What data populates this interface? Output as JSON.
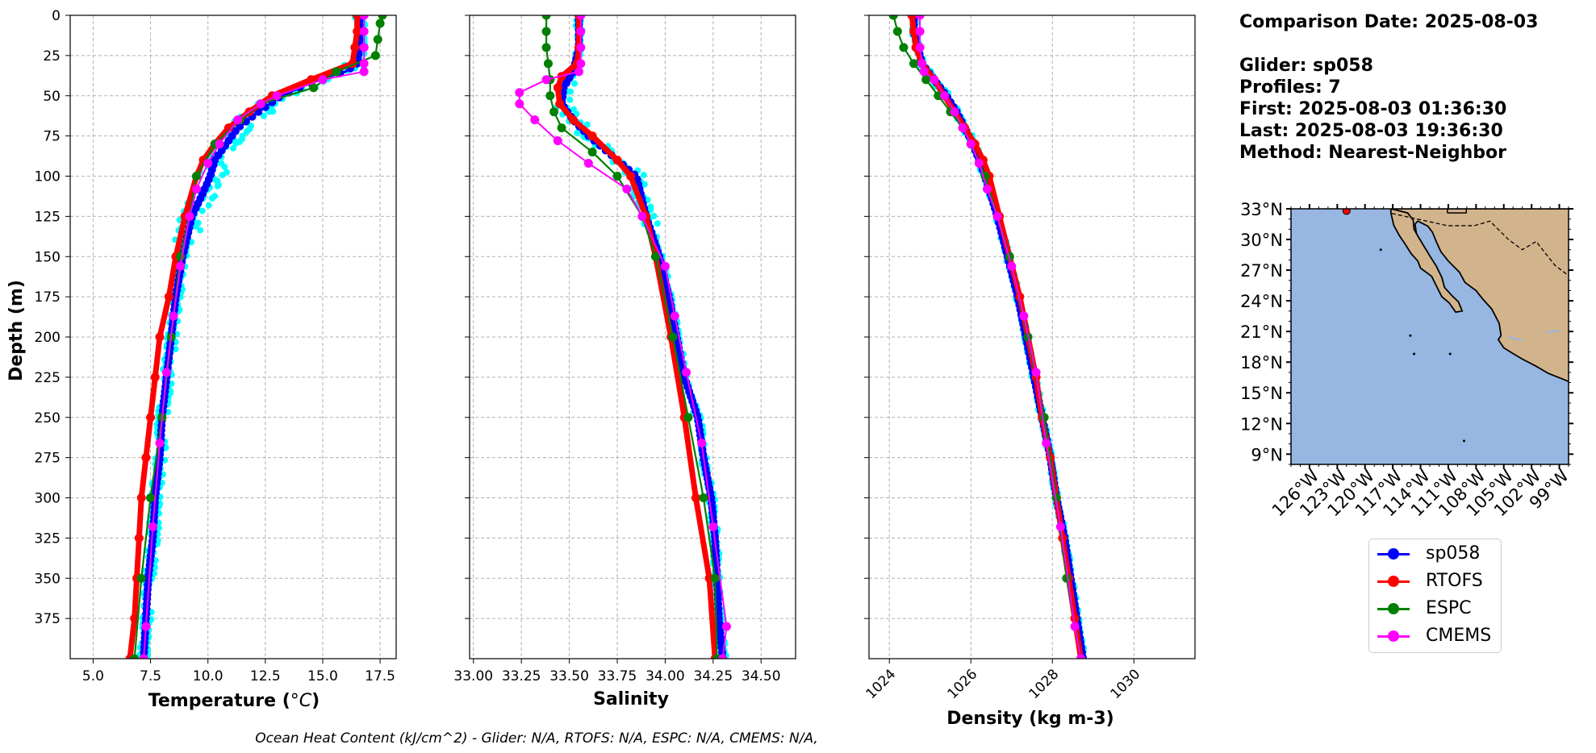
{
  "info": {
    "comparison_date": "Comparison Date: 2025-08-03",
    "glider": "Glider: sp058",
    "profiles": "Profiles: 7",
    "first": "First: 2025-08-03 01:36:30",
    "last": "Last: 2025-08-03 19:36:30",
    "method": "Method: Nearest-Neighbor"
  },
  "footer": "Ocean Heat Content (kJ/cm^2) - Glider: N/A,  RTOFS: N/A,  ESPC: N/A,  CMEMS: N/A,",
  "legend": [
    {
      "name": "sp058",
      "color": "#0000ff"
    },
    {
      "name": "RTOFS",
      "color": "#ff0000"
    },
    {
      "name": "ESPC",
      "color": "#008000"
    },
    {
      "name": "CMEMS",
      "color": "#ff00ff"
    }
  ],
  "colors": {
    "glider_raw": "#00ffff",
    "land": "#d2b48c",
    "ocean": "#97b6e1",
    "grid": "#b0b0b0"
  },
  "chart_data": [
    {
      "type": "line",
      "xlabel": "Temperature (°C)",
      "ylabel": "Depth (m)",
      "xlim": [
        4.0,
        18.2
      ],
      "ylim": [
        400,
        0
      ],
      "xticks": [
        5.0,
        7.5,
        10.0,
        12.5,
        15.0,
        17.5
      ],
      "xtick_labels": [
        "5.0",
        "7.5",
        "10.0",
        "12.5",
        "15.0",
        "17.5"
      ],
      "yticks": [
        0,
        25,
        50,
        75,
        100,
        125,
        150,
        175,
        200,
        225,
        250,
        275,
        300,
        325,
        350,
        375
      ],
      "grid": true,
      "series": [
        {
          "name": "sp058",
          "depth": [
            0,
            10,
            20,
            30,
            35,
            40,
            50,
            60,
            70,
            80,
            90,
            100,
            110,
            125,
            150,
            175,
            200,
            225,
            250,
            275,
            300,
            325,
            350,
            375,
            400
          ],
          "values": [
            16.6,
            16.6,
            16.6,
            16.5,
            16.0,
            14.8,
            13.2,
            12.2,
            11.3,
            10.8,
            10.3,
            10.1,
            9.8,
            9.3,
            8.9,
            8.6,
            8.4,
            8.2,
            8.0,
            7.9,
            7.7,
            7.6,
            7.4,
            7.3,
            7.2
          ]
        },
        {
          "name": "RTOFS",
          "depth": [
            0,
            10,
            20,
            30,
            40,
            50,
            60,
            70,
            80,
            90,
            100,
            125,
            150,
            175,
            200,
            225,
            250,
            275,
            300,
            325,
            350,
            375,
            400
          ],
          "values": [
            16.5,
            16.5,
            16.4,
            16.3,
            14.5,
            12.8,
            11.8,
            10.9,
            10.3,
            9.8,
            9.5,
            9.0,
            8.6,
            8.3,
            7.9,
            7.7,
            7.5,
            7.3,
            7.1,
            7.0,
            6.9,
            6.8,
            6.6
          ]
        },
        {
          "name": "ESPC",
          "depth": [
            0,
            5,
            15,
            25,
            35,
            45,
            55,
            65,
            80,
            100,
            125,
            150,
            200,
            250,
            300,
            350,
            400
          ],
          "values": [
            17.6,
            17.5,
            17.4,
            17.3,
            15.6,
            14.6,
            12.3,
            11.4,
            10.3,
            9.5,
            9.2,
            8.8,
            8.4,
            8.0,
            7.5,
            7.1,
            6.8
          ]
        },
        {
          "name": "CMEMS",
          "depth": [
            0,
            10,
            20,
            30,
            35,
            40,
            50,
            55,
            65,
            80,
            92,
            108,
            125,
            156,
            187,
            222,
            266,
            318,
            380,
            400
          ],
          "values": [
            16.8,
            16.8,
            16.8,
            16.8,
            16.8,
            15.0,
            13.0,
            12.3,
            11.3,
            10.5,
            10.0,
            9.5,
            9.2,
            8.8,
            8.5,
            8.2,
            7.9,
            7.6,
            7.3,
            7.2
          ]
        }
      ]
    },
    {
      "type": "line",
      "xlabel": "Salinity",
      "xlim": [
        32.98,
        34.68
      ],
      "ylim": [
        400,
        0
      ],
      "xticks": [
        33.0,
        33.25,
        33.5,
        33.75,
        34.0,
        34.25,
        34.5
      ],
      "xtick_labels": [
        "33.00",
        "33.25",
        "33.50",
        "33.75",
        "34.00",
        "34.25",
        "34.50"
      ],
      "grid": true,
      "series": [
        {
          "name": "sp058",
          "depth": [
            0,
            20,
            35,
            45,
            55,
            65,
            75,
            85,
            100,
            125,
            150,
            175,
            200,
            225,
            250,
            275,
            300,
            325,
            350,
            375,
            400
          ],
          "values": [
            33.55,
            33.55,
            33.52,
            33.47,
            33.46,
            33.52,
            33.6,
            33.7,
            33.85,
            33.9,
            33.97,
            34.02,
            34.06,
            34.1,
            34.17,
            34.2,
            34.24,
            34.26,
            34.27,
            34.28,
            34.3
          ]
        },
        {
          "name": "RTOFS",
          "depth": [
            0,
            20,
            30,
            38,
            45,
            55,
            65,
            75,
            90,
            100,
            125,
            150,
            200,
            250,
            300,
            350,
            400
          ],
          "values": [
            33.55,
            33.55,
            33.54,
            33.46,
            33.44,
            33.45,
            33.52,
            33.62,
            33.75,
            33.82,
            33.9,
            33.95,
            34.03,
            34.1,
            34.16,
            34.23,
            34.26
          ]
        },
        {
          "name": "ESPC",
          "depth": [
            0,
            10,
            20,
            30,
            40,
            50,
            60,
            70,
            85,
            100,
            125,
            150,
            200,
            250,
            300,
            350,
            400
          ],
          "values": [
            33.38,
            33.38,
            33.38,
            33.39,
            33.4,
            33.4,
            33.42,
            33.46,
            33.62,
            33.75,
            33.88,
            33.95,
            34.04,
            34.12,
            34.2,
            34.26,
            34.27
          ]
        },
        {
          "name": "CMEMS",
          "depth": [
            0,
            10,
            20,
            30,
            35,
            40,
            48,
            55,
            65,
            78,
            92,
            108,
            125,
            156,
            187,
            222,
            266,
            318,
            380,
            400
          ],
          "values": [
            33.56,
            33.56,
            33.56,
            33.56,
            33.55,
            33.38,
            33.24,
            33.24,
            33.32,
            33.44,
            33.6,
            33.8,
            33.88,
            34.0,
            34.05,
            34.11,
            34.19,
            34.25,
            34.32,
            34.3
          ]
        }
      ]
    },
    {
      "type": "line",
      "xlabel": "Density (kg m-3)",
      "xlim": [
        1023.5,
        1031.5
      ],
      "ylim": [
        400,
        0
      ],
      "xticks": [
        1024,
        1026,
        1028,
        1030
      ],
      "xtick_labels": [
        "1024",
        "1026",
        "1028",
        "1030"
      ],
      "grid": true,
      "series": [
        {
          "name": "sp058",
          "depth": [
            0,
            10,
            20,
            30,
            40,
            50,
            60,
            70,
            80,
            90,
            100,
            125,
            150,
            175,
            200,
            225,
            250,
            275,
            300,
            325,
            350,
            375,
            400
          ],
          "values": [
            1024.6,
            1024.6,
            1024.7,
            1024.8,
            1025.1,
            1025.4,
            1025.65,
            1025.85,
            1026.05,
            1026.2,
            1026.35,
            1026.65,
            1026.9,
            1027.15,
            1027.35,
            1027.55,
            1027.75,
            1027.95,
            1028.1,
            1028.3,
            1028.45,
            1028.6,
            1028.75
          ]
        },
        {
          "name": "RTOFS",
          "depth": [
            0,
            10,
            20,
            30,
            40,
            50,
            60,
            70,
            80,
            90,
            100,
            125,
            150,
            175,
            200,
            225,
            250,
            275,
            300,
            325,
            350,
            375,
            400
          ],
          "values": [
            1024.55,
            1024.6,
            1024.65,
            1024.8,
            1025.1,
            1025.35,
            1025.6,
            1025.85,
            1026.1,
            1026.3,
            1026.45,
            1026.7,
            1026.95,
            1027.2,
            1027.4,
            1027.6,
            1027.75,
            1027.95,
            1028.1,
            1028.25,
            1028.4,
            1028.55,
            1028.7
          ]
        },
        {
          "name": "ESPC",
          "depth": [
            0,
            10,
            20,
            30,
            40,
            50,
            60,
            70,
            80,
            100,
            125,
            150,
            200,
            250,
            300,
            350,
            400
          ],
          "values": [
            1024.1,
            1024.2,
            1024.35,
            1024.6,
            1024.9,
            1025.2,
            1025.5,
            1025.8,
            1026.0,
            1026.35,
            1026.65,
            1026.95,
            1027.4,
            1027.8,
            1028.1,
            1028.35,
            1028.7
          ]
        },
        {
          "name": "CMEMS",
          "depth": [
            0,
            10,
            20,
            30,
            35,
            40,
            50,
            60,
            70,
            80,
            92,
            108,
            125,
            156,
            187,
            222,
            266,
            318,
            380,
            400
          ],
          "values": [
            1024.75,
            1024.75,
            1024.75,
            1024.8,
            1024.85,
            1025.1,
            1025.35,
            1025.6,
            1025.8,
            1026.0,
            1026.2,
            1026.4,
            1026.65,
            1027.0,
            1027.3,
            1027.6,
            1027.85,
            1028.2,
            1028.55,
            1028.7
          ]
        }
      ]
    },
    {
      "type": "map",
      "lon_range": [
        -128,
        -98
      ],
      "lat_range": [
        8,
        33
      ],
      "xticks": [
        -126,
        -123,
        -120,
        -117,
        -114,
        -111,
        -108,
        -105,
        -102,
        -99
      ],
      "xtick_labels": [
        "126°W",
        "123°W",
        "120°W",
        "117°W",
        "114°W",
        "111°W",
        "108°W",
        "105°W",
        "102°W",
        "99°W"
      ],
      "yticks": [
        33,
        30,
        27,
        24,
        21,
        18,
        15,
        12,
        9
      ],
      "ytick_labels": [
        "33°N",
        "30°N",
        "27°N",
        "24°N",
        "21°N",
        "18°N",
        "15°N",
        "12°N",
        "9°N"
      ],
      "glider_location": {
        "lon": -122.0,
        "lat": 32.8
      }
    }
  ]
}
